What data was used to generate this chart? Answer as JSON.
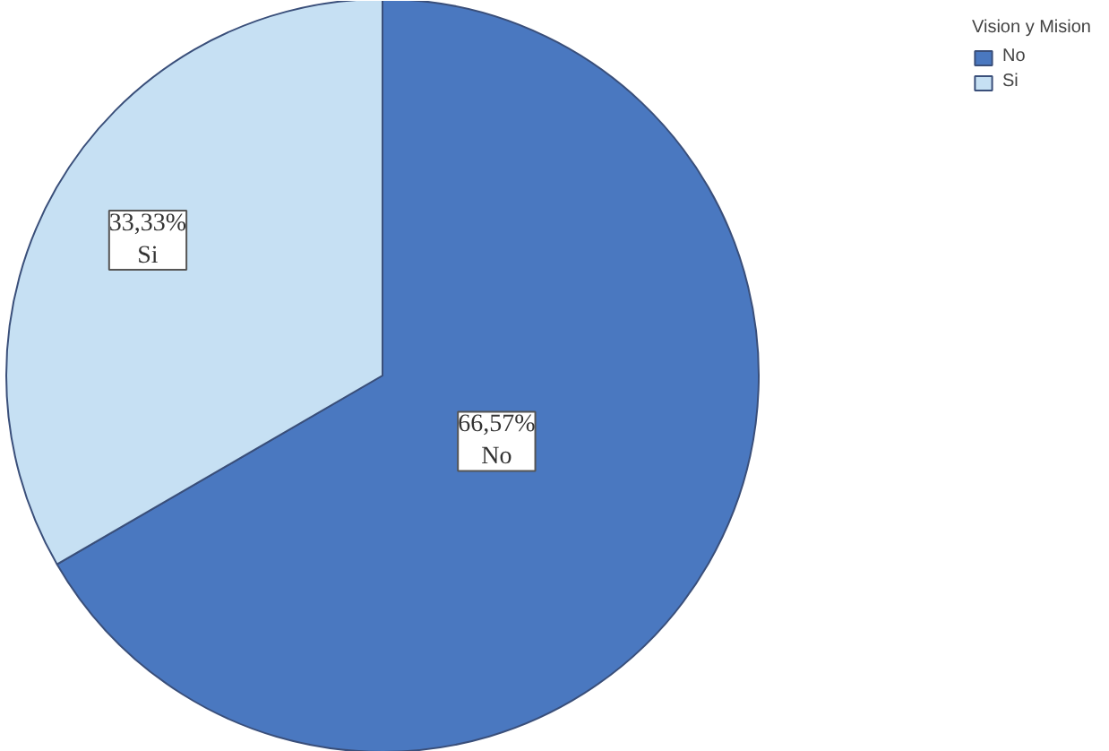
{
  "chart_data": {
    "type": "pie",
    "legend_title": "Vision y Mision",
    "legend": "top right",
    "categories": [
      "No",
      "Si"
    ],
    "values": [
      66.57,
      33.33
    ],
    "colors": [
      "#4a78c0",
      "#c6e0f3"
    ],
    "value_labels": [
      "66,57%",
      "33,33%"
    ]
  }
}
